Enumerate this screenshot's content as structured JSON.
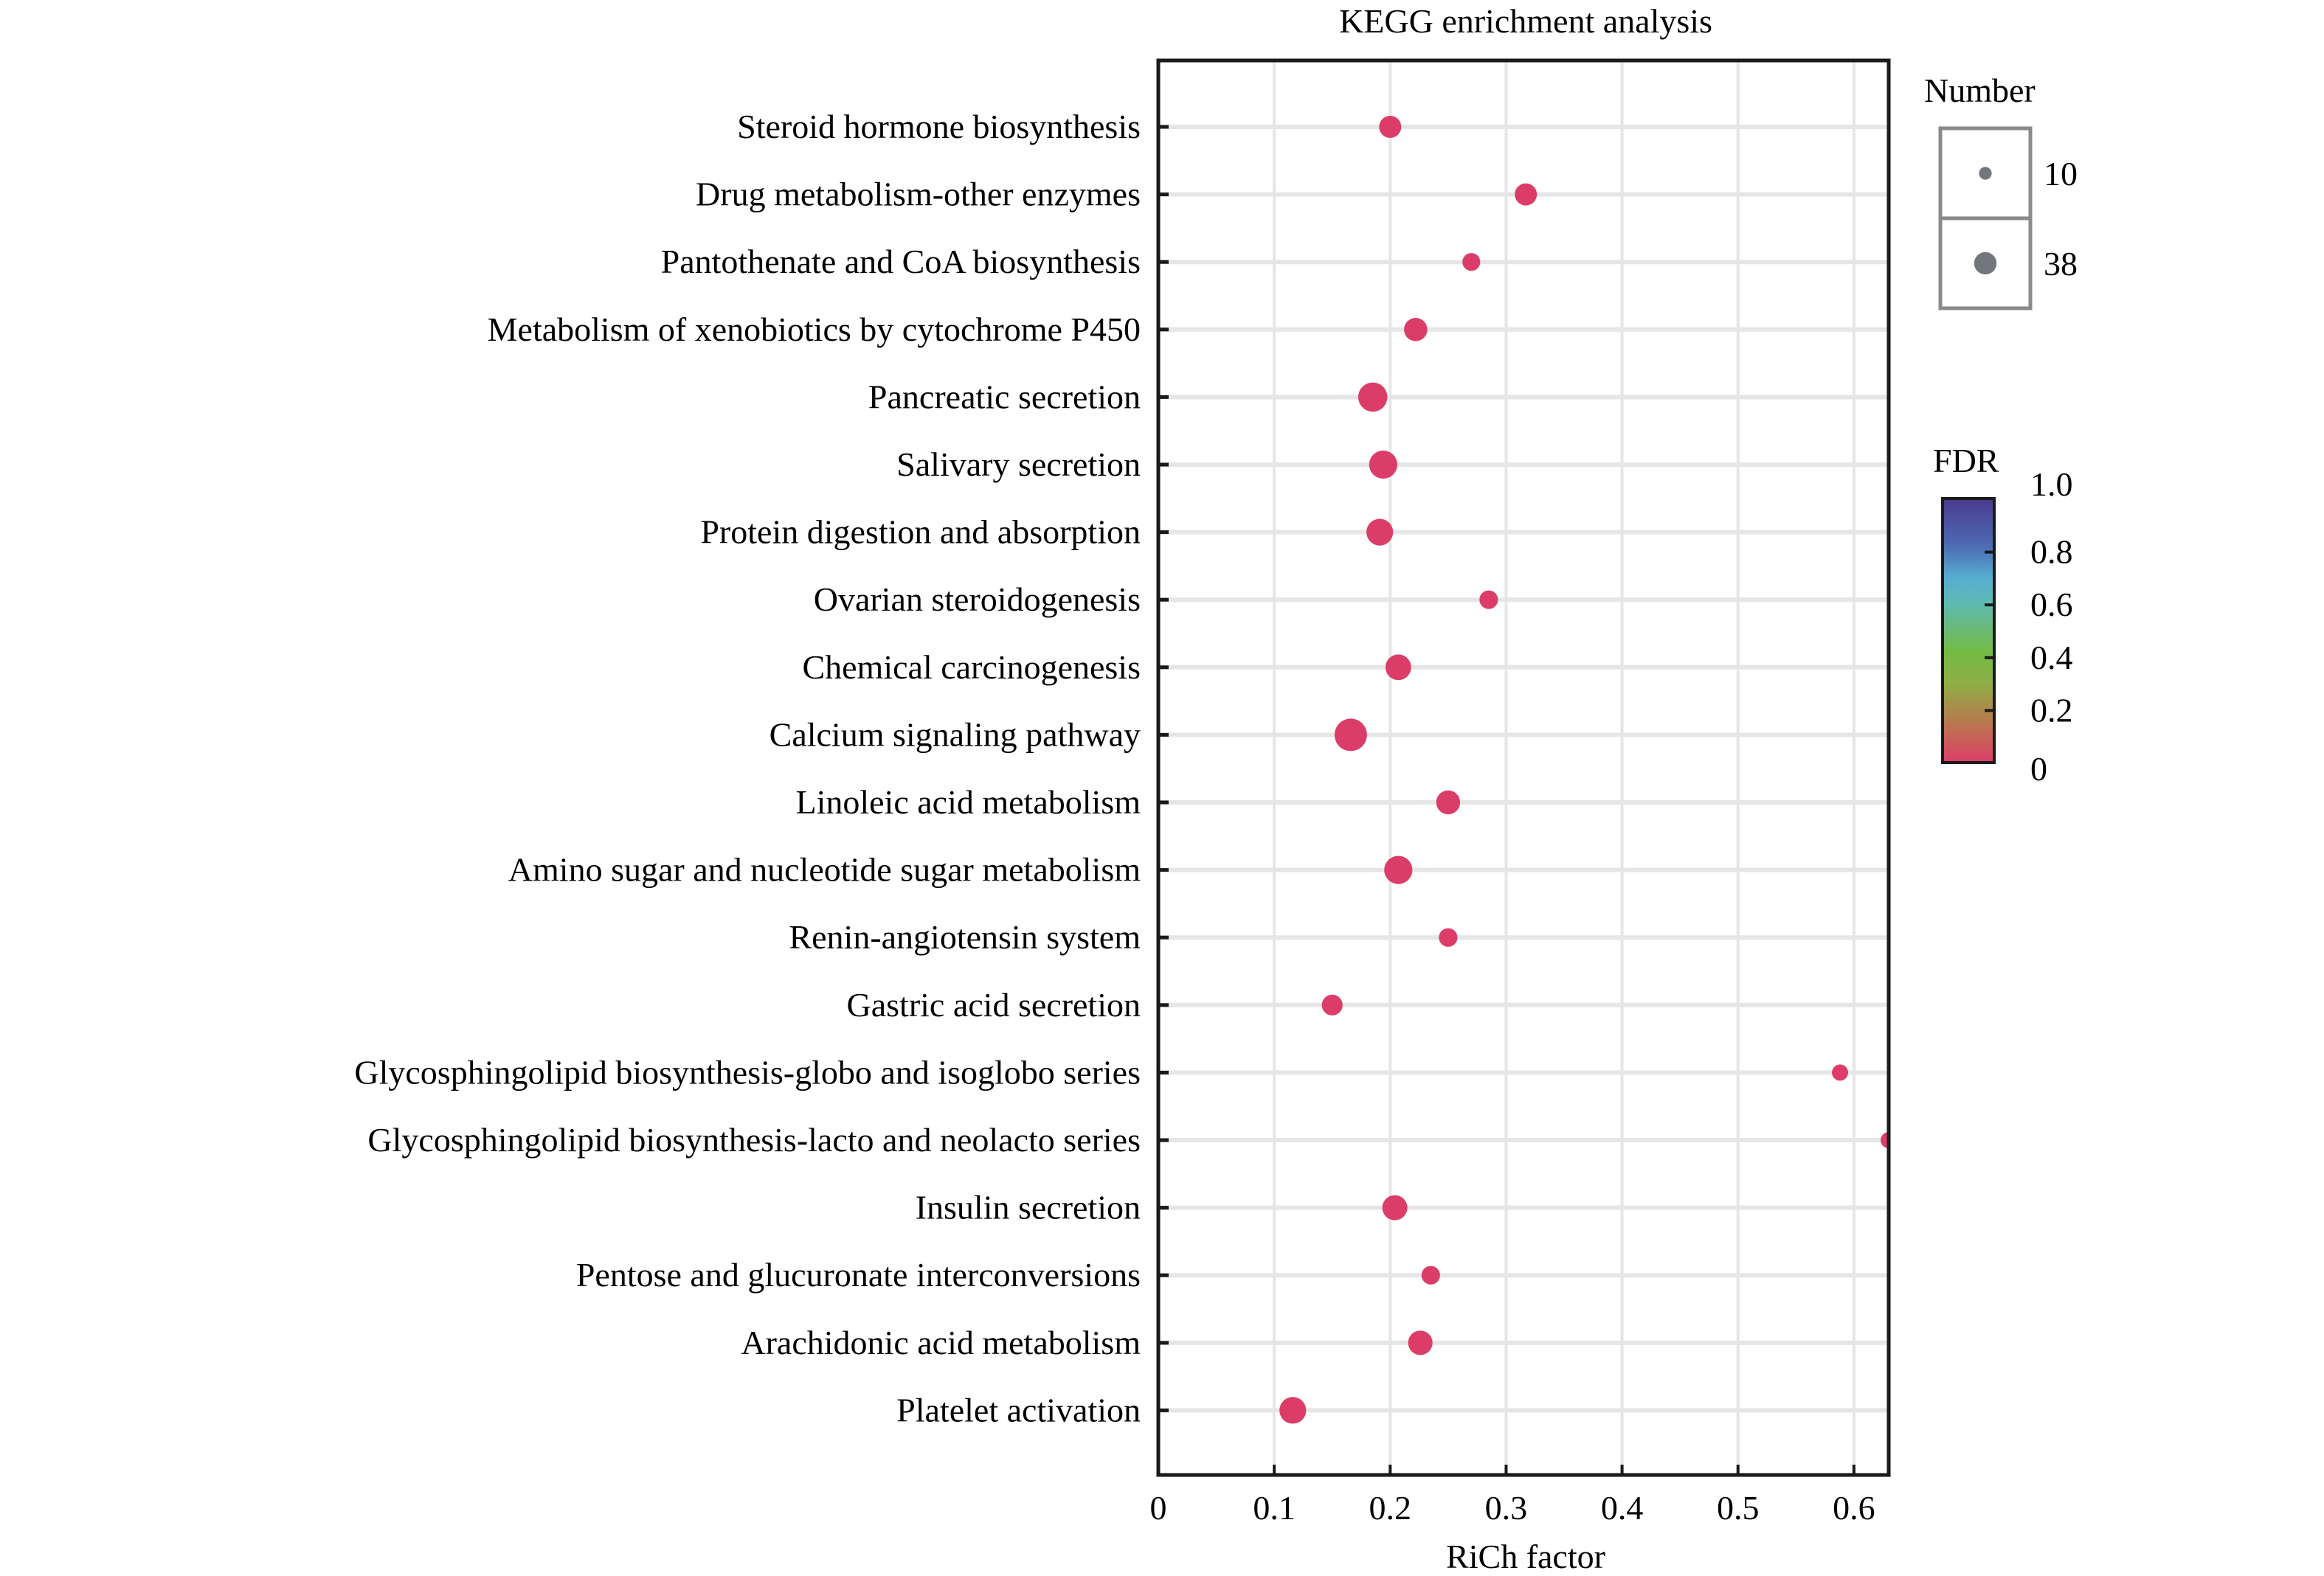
{
  "chart_data": {
    "type": "scatter",
    "subtype": "bubble",
    "title": "KEGG enrichment analysis",
    "xlabel": "RiCh factor",
    "ylabel": "",
    "xlim": [
      0,
      0.63
    ],
    "xticks": [
      0,
      0.1,
      0.2,
      0.3,
      0.4,
      0.5,
      0.6
    ],
    "xtick_labels": [
      "0",
      "0.1",
      "0.2",
      "0.3",
      "0.4",
      "0.5",
      "0.6"
    ],
    "grid": true,
    "point_color": "#dc3d68",
    "categories": [
      "Steroid hormone biosynthesis",
      "Drug metabolism-other enzymes",
      "Pantothenate and CoA biosynthesis",
      "Metabolism of xenobiotics by cytochrome P450",
      "Pancreatic secretion",
      "Salivary secretion",
      "Protein digestion and absorption",
      "Ovarian steroidogenesis",
      "Chemical carcinogenesis",
      "Calcium signaling pathway",
      "Linoleic acid metabolism",
      "Amino sugar and nucleotide sugar metabolism",
      "Renin-angiotensin system",
      "Gastric acid secretion",
      "Glycosphingolipid biosynthesis-globo and isoglobo series",
      "Glycosphingolipid biosynthesis-lacto and neolacto series",
      "Insulin secretion",
      "Pentose and glucuronate interconversions",
      "Arachidonic acid metabolism",
      "Platelet activation"
    ],
    "points": [
      {
        "term": "Steroid hormone biosynthesis",
        "rich_factor": 0.2,
        "number": 18,
        "fdr": 0.0
      },
      {
        "term": "Drug metabolism-other enzymes",
        "rich_factor": 0.317,
        "number": 18,
        "fdr": 0.0
      },
      {
        "term": "Pantothenate and CoA biosynthesis",
        "rich_factor": 0.27,
        "number": 12,
        "fdr": 0.0
      },
      {
        "term": "Metabolism of xenobiotics by cytochrome P450",
        "rich_factor": 0.222,
        "number": 20,
        "fdr": 0.0
      },
      {
        "term": "Pancreatic secretion",
        "rich_factor": 0.185,
        "number": 31,
        "fdr": 0.0
      },
      {
        "term": "Salivary secretion",
        "rich_factor": 0.194,
        "number": 29,
        "fdr": 0.0
      },
      {
        "term": "Protein digestion and absorption",
        "rich_factor": 0.191,
        "number": 26,
        "fdr": 0.0
      },
      {
        "term": "Ovarian steroidogenesis",
        "rich_factor": 0.285,
        "number": 13,
        "fdr": 0.0
      },
      {
        "term": "Chemical carcinogenesis",
        "rich_factor": 0.207,
        "number": 24,
        "fdr": 0.0
      },
      {
        "term": "Calcium signaling pathway",
        "rich_factor": 0.166,
        "number": 38,
        "fdr": 0.0
      },
      {
        "term": "Linoleic acid metabolism",
        "rich_factor": 0.25,
        "number": 21,
        "fdr": 0.0
      },
      {
        "term": "Amino sugar and nucleotide sugar metabolism",
        "rich_factor": 0.207,
        "number": 29,
        "fdr": 0.0
      },
      {
        "term": "Renin-angiotensin system",
        "rich_factor": 0.25,
        "number": 13,
        "fdr": 0.0
      },
      {
        "term": "Gastric acid secretion",
        "rich_factor": 0.15,
        "number": 16,
        "fdr": 0.0
      },
      {
        "term": "Glycosphingolipid biosynthesis-globo and isoglobo series",
        "rich_factor": 0.588,
        "number": 10,
        "fdr": 0.0
      },
      {
        "term": "Glycosphingolipid biosynthesis-lacto and neolacto series",
        "rich_factor": 0.63,
        "number": 10,
        "fdr": 0.0
      },
      {
        "term": "Insulin secretion",
        "rich_factor": 0.204,
        "number": 23,
        "fdr": 0.0
      },
      {
        "term": "Pentose and glucuronate interconversions",
        "rich_factor": 0.235,
        "number": 13,
        "fdr": 0.0
      },
      {
        "term": "Arachidonic acid metabolism",
        "rich_factor": 0.226,
        "number": 22,
        "fdr": 0.0
      },
      {
        "term": "Platelet activation",
        "rich_factor": 0.116,
        "number": 26,
        "fdr": 0.0
      }
    ],
    "size_legend": {
      "title": "Number",
      "entries": [
        {
          "label": "10",
          "value": 10
        },
        {
          "label": "38",
          "value": 38
        }
      ],
      "color": "#74767d"
    },
    "color_legend": {
      "title": "FDR",
      "range": [
        0,
        1.0
      ],
      "tick_labels": [
        "1.0",
        "0.8",
        "0.6",
        "0.4",
        "0.2",
        "0"
      ],
      "tick_values": [
        1.0,
        0.8,
        0.6,
        0.4,
        0.2,
        0
      ],
      "stops": [
        {
          "value": 0.0,
          "color": "#dc3d68"
        },
        {
          "value": 0.15,
          "color": "#b9784f"
        },
        {
          "value": 0.3,
          "color": "#8faf45"
        },
        {
          "value": 0.42,
          "color": "#74bb44"
        },
        {
          "value": 0.6,
          "color": "#5fbab0"
        },
        {
          "value": 0.7,
          "color": "#56aed0"
        },
        {
          "value": 0.82,
          "color": "#4d6bb3"
        },
        {
          "value": 1.0,
          "color": "#4a3a8f"
        }
      ]
    }
  }
}
